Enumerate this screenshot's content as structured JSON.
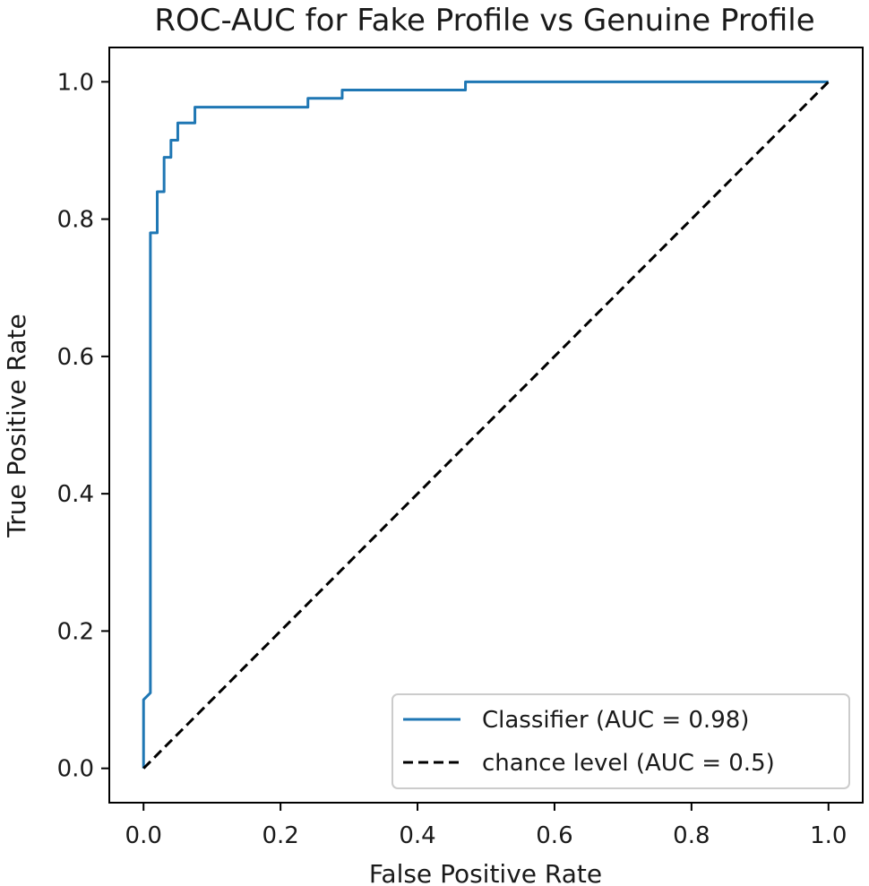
{
  "chart_data": {
    "type": "line",
    "title": "ROC-AUC for Fake Profile vs Genuine Profile",
    "xlabel": "False Positive Rate",
    "ylabel": "True Positive Rate",
    "xlim": [
      -0.05,
      1.05
    ],
    "ylim": [
      -0.05,
      1.05
    ],
    "xticks": [
      "0.0",
      "0.2",
      "0.4",
      "0.6",
      "0.8",
      "1.0"
    ],
    "yticks": [
      "0.0",
      "0.2",
      "0.4",
      "0.6",
      "0.8",
      "1.0"
    ],
    "grid": false,
    "legend_position": "lower-right",
    "series": [
      {
        "name": "Classifier (AUC = 0.98)",
        "color": "#1f77b4",
        "style": "solid",
        "x": [
          0.0,
          0.0,
          0.0,
          0.01,
          0.01,
          0.02,
          0.02,
          0.03,
          0.03,
          0.04,
          0.04,
          0.05,
          0.05,
          0.075,
          0.075,
          0.24,
          0.24,
          0.29,
          0.29,
          0.47,
          0.47,
          1.0
        ],
        "y": [
          0.0,
          0.1,
          0.1,
          0.11,
          0.78,
          0.78,
          0.84,
          0.84,
          0.89,
          0.89,
          0.915,
          0.915,
          0.94,
          0.94,
          0.963,
          0.963,
          0.976,
          0.976,
          0.988,
          0.988,
          1.0,
          1.0
        ]
      },
      {
        "name": "chance level (AUC = 0.5)",
        "color": "#000000",
        "style": "dashed",
        "x": [
          0.0,
          1.0
        ],
        "y": [
          0.0,
          1.0
        ]
      }
    ]
  }
}
